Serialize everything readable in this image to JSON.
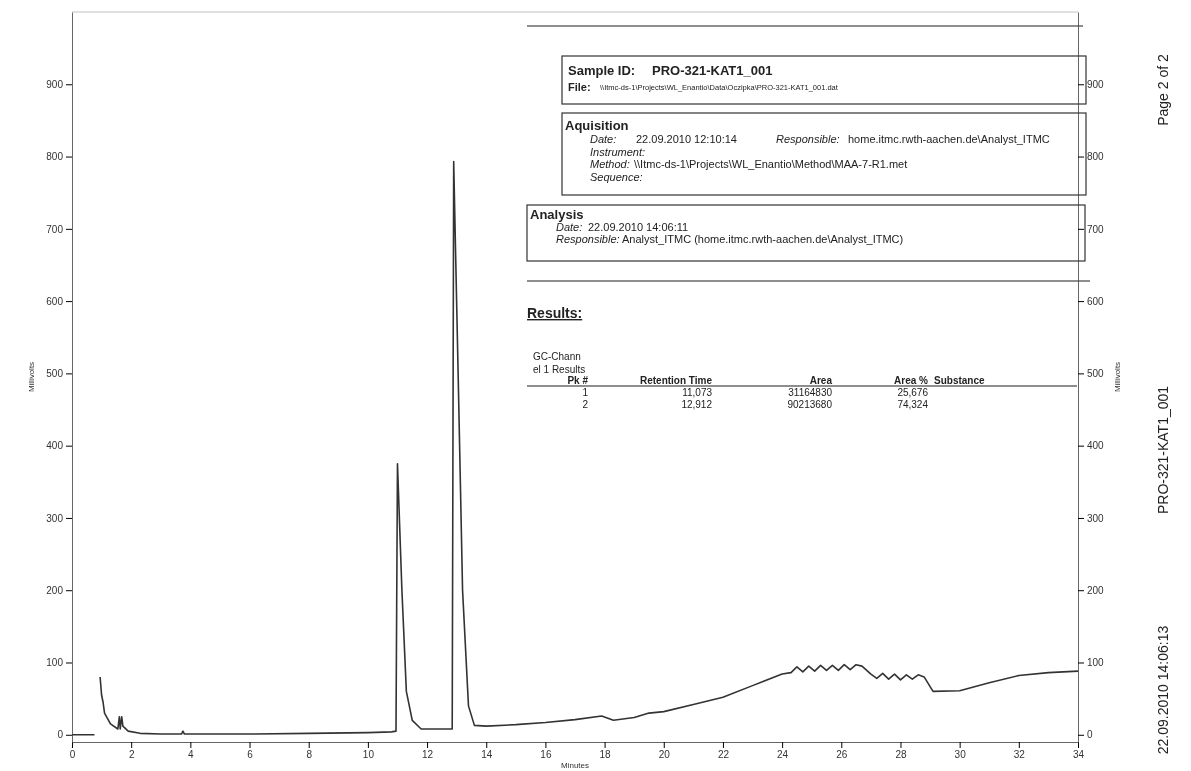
{
  "chart_data": {
    "type": "line",
    "xlabel": "Minutes",
    "ylabel": "Millivolts",
    "y2label": "Millivolts",
    "xlim": [
      0,
      34
    ],
    "xticks": [
      0,
      2,
      4,
      6,
      8,
      10,
      12,
      14,
      16,
      18,
      20,
      22,
      24,
      26,
      28,
      30,
      32,
      34
    ],
    "ylim": [
      -10,
      1000
    ],
    "yticks": [
      0,
      100,
      200,
      300,
      400,
      500,
      600,
      700,
      800,
      900
    ],
    "y2lim": [
      -10,
      1000
    ],
    "y2ticks": [
      0,
      100,
      200,
      300,
      400,
      500,
      600,
      700,
      800,
      900
    ],
    "series": [
      {
        "color": "#333333",
        "x": [
          0,
          0.76,
          0.78,
          0.86,
          0.95,
          1.0,
          1.05,
          1.1,
          1.3,
          1.55,
          1.6,
          1.63,
          1.68,
          1.72,
          1.9,
          2.3,
          3,
          3.7,
          3.75,
          3.8,
          6,
          8,
          10,
          10.8,
          10.95,
          11.0,
          11.15,
          11.3,
          11.5,
          11.8,
          12.5,
          12.85,
          12.9,
          13.05,
          13.2,
          13.4,
          13.6,
          14,
          15,
          16,
          17,
          17.9,
          18.3,
          19,
          19.5,
          20,
          21,
          22,
          23,
          24,
          24.3,
          24.5,
          24.7,
          24.9,
          25.1,
          25.3,
          25.5,
          25.7,
          25.9,
          26.1,
          26.3,
          26.5,
          26.7,
          27,
          27.2,
          27.4,
          27.6,
          27.8,
          28.0,
          28.2,
          28.4,
          28.6,
          28.8,
          29.1,
          30,
          31,
          32,
          33,
          34
        ],
        "values": [
          0,
          0,
          null,
          null,
          80,
          55,
          45,
          30,
          15,
          8,
          25,
          8,
          25,
          12,
          5,
          2,
          1,
          1,
          5,
          1,
          1,
          2,
          3,
          4,
          5,
          375,
          200,
          60,
          20,
          8,
          8,
          8,
          793,
          500,
          200,
          40,
          13,
          12,
          14,
          17,
          21,
          26,
          20,
          24,
          30,
          32,
          42,
          52,
          68,
          84,
          86,
          94,
          87,
          95,
          88,
          96,
          89,
          96,
          89,
          97,
          90,
          97,
          95,
          84,
          78,
          85,
          77,
          84,
          76,
          83,
          77,
          83,
          80,
          60,
          61,
          72,
          82,
          86,
          88
        ]
      }
    ],
    "annotations": [
      "Sample ID:",
      "PRO-321-KAT1_001",
      "File:",
      "\\\\Itmc-ds-1\\Projects\\WL_Enantio\\Data\\Oczipka\\PRO-321-KAT1_001.dat",
      "Aquisition",
      "Date:",
      "22.09.2010 12:10:14",
      "Responsible:",
      "home.itmc.rwth-aachen.de\\Analyst_ITMC",
      "Instrument:",
      "Method:",
      "\\\\Itmc-ds-1\\Projects\\WL_Enantio\\Method\\MAA-7-R1.met",
      "Sequence:",
      "Analysis",
      "Date:",
      "22.09.2010 14:06:11",
      "Responsible:",
      "Analyst_ITMC (home.itmc.rwth-aachen.de\\Analyst_ITMC)",
      "Results:",
      "GC-Chann",
      "el 1 Results",
      "Pk #",
      "Retention Time",
      "Area",
      "Area %",
      "Substance",
      "1",
      "11,073",
      "31164830",
      "25,676",
      "2",
      "12,912",
      "90213680",
      "74,324",
      "Page 2 of 2",
      "PRO-321-KAT1_001",
      "22.09.2010 14:06:13"
    ]
  }
}
